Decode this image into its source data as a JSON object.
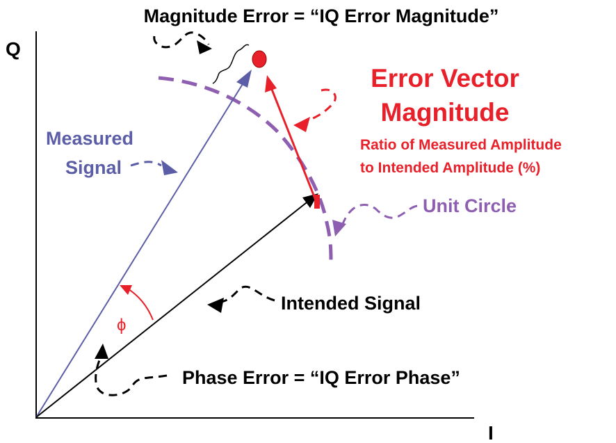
{
  "title": "Magnitude Error = “IQ Error Magnitude”",
  "axes": {
    "q": "Q",
    "i": "I"
  },
  "labels": {
    "error_vector": [
      "Error Vector",
      "Magnitude"
    ],
    "ratio": [
      "Ratio of Measured Amplitude",
      "to Intended Amplitude (%)"
    ],
    "measured": [
      "Measured",
      "Signal"
    ],
    "unit_circle": "Unit Circle",
    "intended": "Intended Signal",
    "phi": "ϕ",
    "phase_error": "Phase Error = “IQ Error Phase”"
  }
}
